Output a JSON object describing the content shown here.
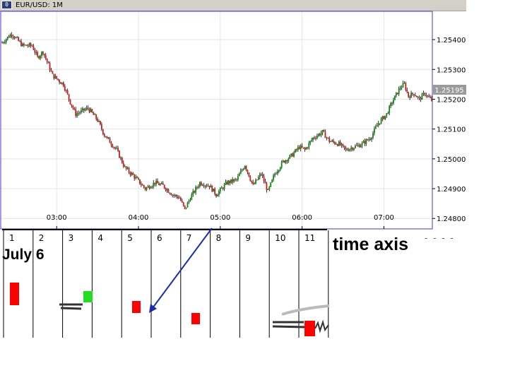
{
  "window": {
    "title": "EUR/USD: 1M",
    "icon": "chart-window-icon"
  },
  "chart_data": {
    "type": "candlestick",
    "symbol": "EUR/USD",
    "timeframe": "1M",
    "x_tick_labels": [
      "03:00",
      "04:00",
      "05:00",
      "06:00",
      "07:00"
    ],
    "y_tick_labels": [
      "1.25400",
      "1.25300",
      "1.25200",
      "1.25100",
      "1.25000",
      "1.24900",
      "1.24800"
    ],
    "ylim": [
      1.24765,
      1.25495
    ],
    "current_price": "1.25195",
    "grid": true,
    "close_path": [
      [
        0,
        1.2539
      ],
      [
        7,
        1.2542
      ],
      [
        15,
        1.2538
      ],
      [
        22,
        1.2538
      ],
      [
        26,
        1.2534
      ],
      [
        30,
        1.2536
      ],
      [
        37,
        1.2528
      ],
      [
        45,
        1.2525
      ],
      [
        50,
        1.2519
      ],
      [
        54,
        1.2515
      ],
      [
        63,
        1.2517
      ],
      [
        70,
        1.2513
      ],
      [
        75,
        1.2508
      ],
      [
        84,
        1.2503
      ],
      [
        90,
        1.2497
      ],
      [
        97,
        1.2494
      ],
      [
        105,
        1.249
      ],
      [
        112,
        1.2492
      ],
      [
        118,
        1.2491
      ],
      [
        125,
        1.2488
      ],
      [
        130,
        1.2487
      ],
      [
        134,
        1.2483
      ],
      [
        138,
        1.2487
      ],
      [
        145,
        1.2492
      ],
      [
        152,
        1.2491
      ],
      [
        157,
        1.2488
      ],
      [
        165,
        1.2492
      ],
      [
        172,
        1.2493
      ],
      [
        178,
        1.2498
      ],
      [
        184,
        1.2491
      ],
      [
        190,
        1.2495
      ],
      [
        195,
        1.2489
      ],
      [
        200,
        1.2495
      ],
      [
        206,
        1.2499
      ],
      [
        212,
        1.2501
      ],
      [
        218,
        1.2504
      ],
      [
        222,
        1.2503
      ],
      [
        228,
        1.2507
      ],
      [
        235,
        1.2509
      ],
      [
        240,
        1.2506
      ],
      [
        247,
        1.2505
      ],
      [
        252,
        1.2503
      ],
      [
        258,
        1.2504
      ],
      [
        264,
        1.2505
      ],
      [
        270,
        1.2507
      ],
      [
        276,
        1.2512
      ],
      [
        282,
        1.2515
      ],
      [
        286,
        1.2519
      ],
      [
        292,
        1.2524
      ],
      [
        295,
        1.2525
      ],
      [
        298,
        1.2521
      ],
      [
        302,
        1.2522
      ],
      [
        306,
        1.252
      ],
      [
        310,
        1.2522
      ],
      [
        315,
        1.25195
      ]
    ]
  },
  "annotations": {
    "date_label": "July 6",
    "time_axis_label": "time axis",
    "dash_marks": "- - - -",
    "slot_numbers": [
      "1",
      "2",
      "3",
      "4",
      "5",
      "6",
      "7",
      "8",
      "9",
      "10",
      "11"
    ]
  },
  "colors": {
    "axis_blue": "#3a3ad0",
    "candle_green": "#0a8a0a",
    "candle_red": "#cc1a1a",
    "marker_red": "#ff0000",
    "marker_green": "#22dd22",
    "arrow_blue": "#1a2ea8",
    "grid": "#e4e4e4"
  }
}
